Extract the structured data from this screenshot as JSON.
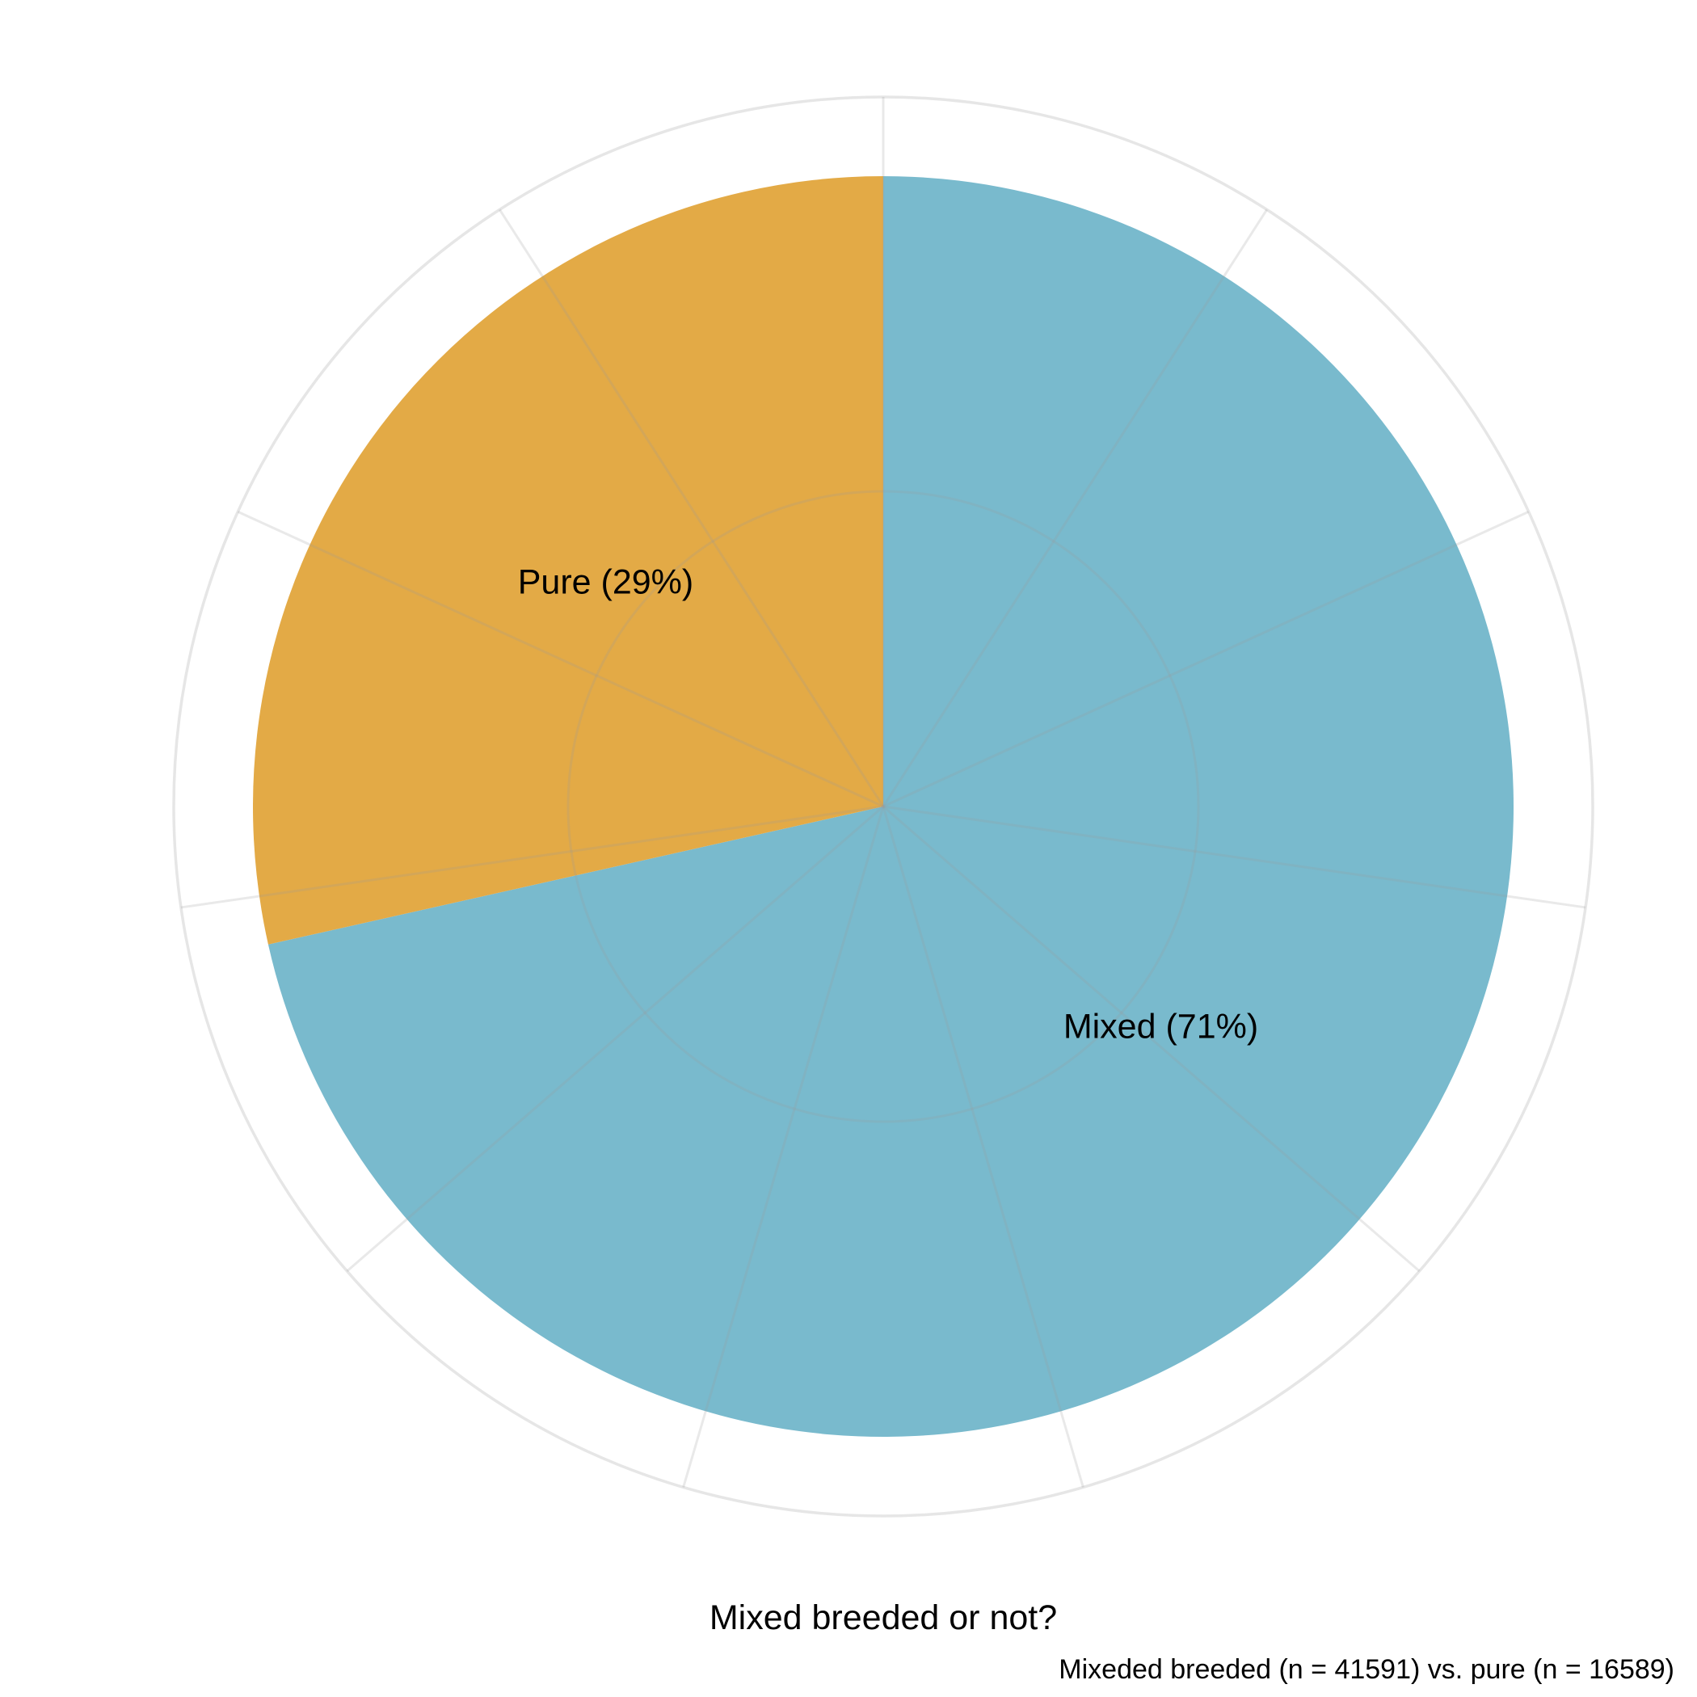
{
  "chart_data": {
    "type": "pie",
    "xlabel": "Mixed breeded or not?",
    "caption": "Mixeded breeded (n = 41591) vs. pure (n = 16589)",
    "start_angle": "12 o'clock",
    "direction": "clockwise",
    "grid": true,
    "slices": [
      {
        "category": "Mixed",
        "value": 41591,
        "percent": 71,
        "label": "Mixed (71%)",
        "color": "#79BACD"
      },
      {
        "category": "Pure",
        "value": 16589,
        "percent": 29,
        "label": "Pure (29%)",
        "color": "#E3AA46"
      }
    ]
  }
}
